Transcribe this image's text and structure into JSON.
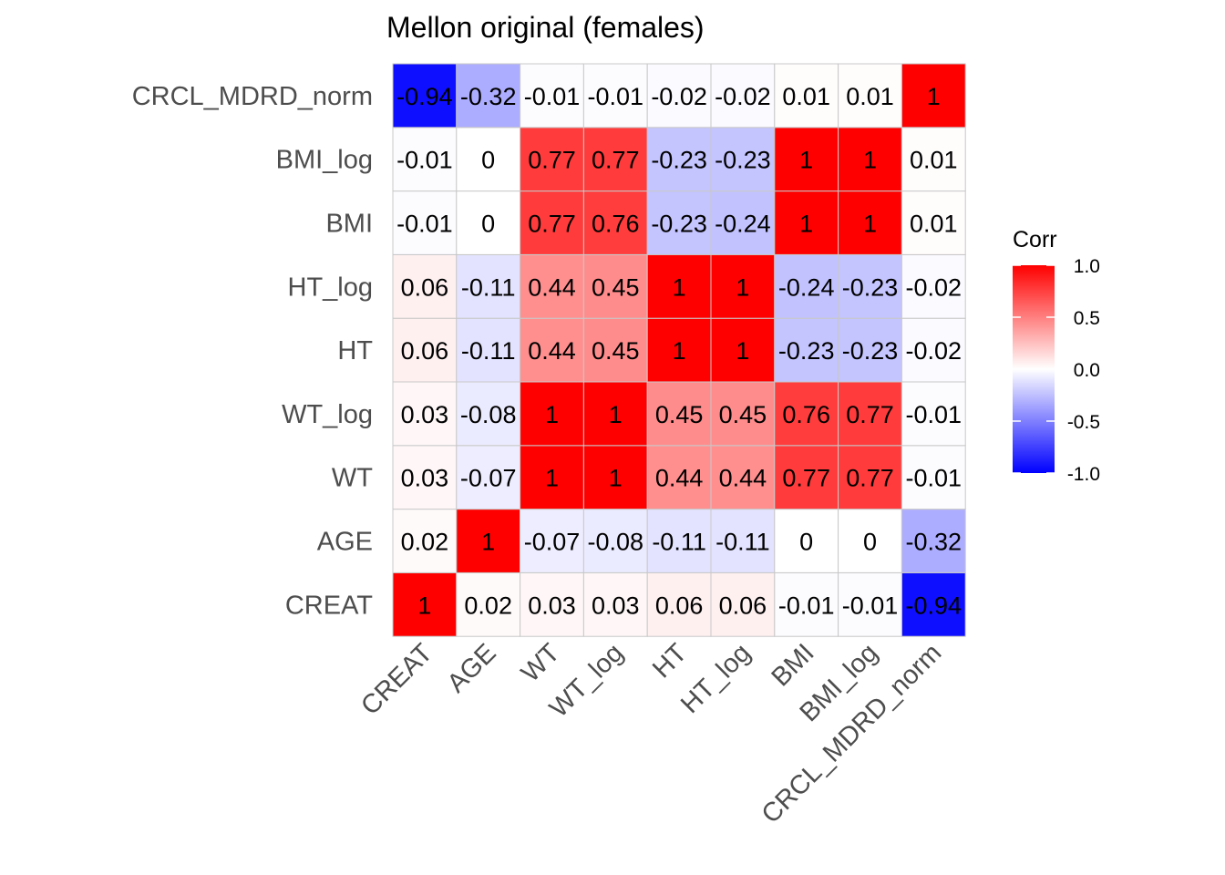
{
  "chart_data": {
    "type": "heatmap",
    "title": "Mellon original (females)",
    "variables": [
      "CREAT",
      "AGE",
      "WT",
      "WT_log",
      "HT",
      "HT_log",
      "BMI",
      "BMI_log",
      "CRCL_MDRD_norm"
    ],
    "matrix": [
      [
        1,
        0.02,
        0.03,
        0.03,
        0.06,
        0.06,
        -0.01,
        -0.01,
        -0.94
      ],
      [
        0.02,
        1,
        -0.07,
        -0.08,
        -0.11,
        -0.11,
        0,
        0,
        -0.32
      ],
      [
        0.03,
        -0.07,
        1,
        1,
        0.44,
        0.44,
        0.77,
        0.77,
        -0.01
      ],
      [
        0.03,
        -0.08,
        1,
        1,
        0.45,
        0.45,
        0.76,
        0.77,
        -0.01
      ],
      [
        0.06,
        -0.11,
        0.44,
        0.45,
        1,
        1,
        -0.23,
        -0.23,
        -0.02
      ],
      [
        0.06,
        -0.11,
        0.44,
        0.45,
        1,
        1,
        -0.24,
        -0.23,
        -0.02
      ],
      [
        -0.01,
        0,
        0.77,
        0.76,
        -0.23,
        -0.24,
        1,
        1,
        0.01
      ],
      [
        -0.01,
        0,
        0.77,
        0.77,
        -0.23,
        -0.23,
        1,
        1,
        0.01
      ],
      [
        -0.94,
        -0.32,
        -0.01,
        -0.01,
        -0.02,
        -0.02,
        0.01,
        0.01,
        1
      ]
    ],
    "legend": {
      "title": "Corr",
      "ticks": [
        "1.0",
        "0.5",
        "0.0",
        "-0.5",
        "-1.0"
      ],
      "limits": [
        -1,
        1
      ],
      "low_color": "#0000FF",
      "mid_color": "#FFFFFF",
      "high_color": "#FF0000",
      "placement": "right"
    },
    "grid": true
  }
}
